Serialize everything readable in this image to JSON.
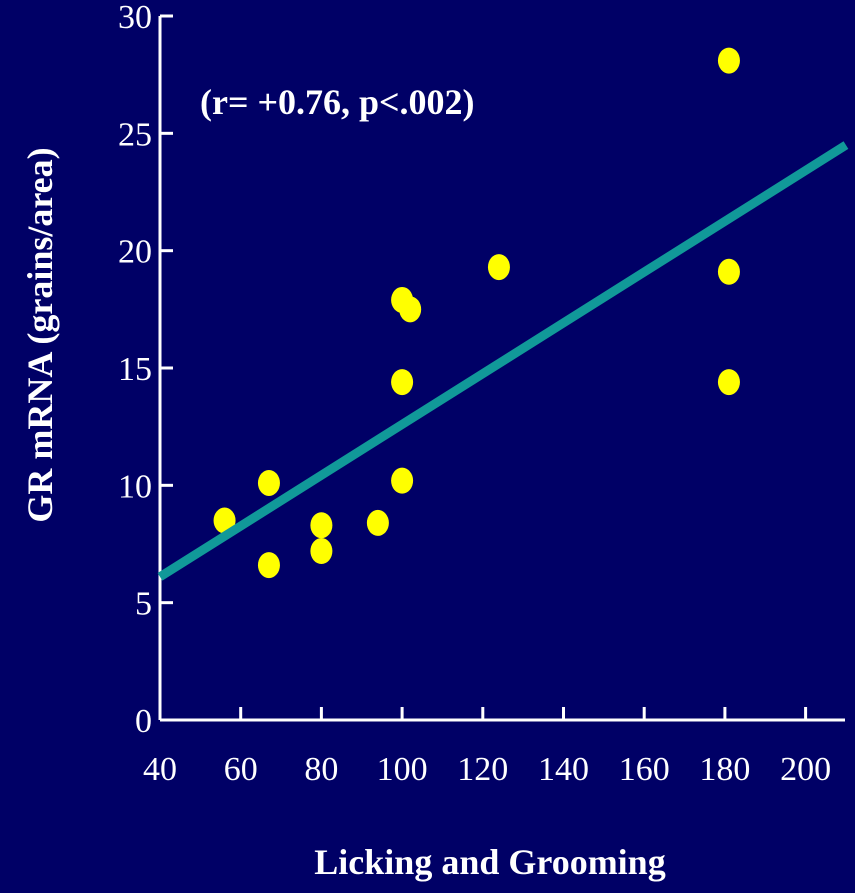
{
  "colors": {
    "background": "#000066",
    "axis": "#ffffff",
    "points": "#ffff00",
    "trend_line": "#119999"
  },
  "chart_data": {
    "type": "scatter",
    "title": "",
    "xlabel": "Licking and Grooming",
    "ylabel": "GR mRNA  (grains/area)",
    "annotation": "(r= +0.76, p<.002)",
    "xlim": [
      40,
      210
    ],
    "ylim": [
      0,
      30
    ],
    "x_ticks": [
      40,
      60,
      80,
      100,
      120,
      140,
      160,
      180,
      200
    ],
    "y_ticks": [
      0,
      5,
      10,
      15,
      20,
      25,
      30
    ],
    "x_tick_labels": [
      "40",
      "60",
      "80",
      "100",
      "120",
      "140",
      "160",
      "180",
      "200"
    ],
    "y_tick_labels": [
      "0",
      "5",
      "10",
      "15",
      "20",
      "25",
      "30"
    ],
    "grid": false,
    "legend": "none",
    "points": [
      {
        "x": 56,
        "y": 8.5
      },
      {
        "x": 67,
        "y": 10.1
      },
      {
        "x": 67,
        "y": 6.6
      },
      {
        "x": 80,
        "y": 8.3
      },
      {
        "x": 80,
        "y": 7.2
      },
      {
        "x": 94,
        "y": 8.4
      },
      {
        "x": 100,
        "y": 17.9
      },
      {
        "x": 102,
        "y": 17.5
      },
      {
        "x": 100,
        "y": 14.4
      },
      {
        "x": 100,
        "y": 10.2
      },
      {
        "x": 124,
        "y": 19.3
      },
      {
        "x": 181,
        "y": 28.1
      },
      {
        "x": 181,
        "y": 19.1
      },
      {
        "x": 181,
        "y": 14.4
      }
    ],
    "trend_line": {
      "x": [
        40,
        210
      ],
      "y": [
        6.1,
        24.5
      ]
    }
  }
}
